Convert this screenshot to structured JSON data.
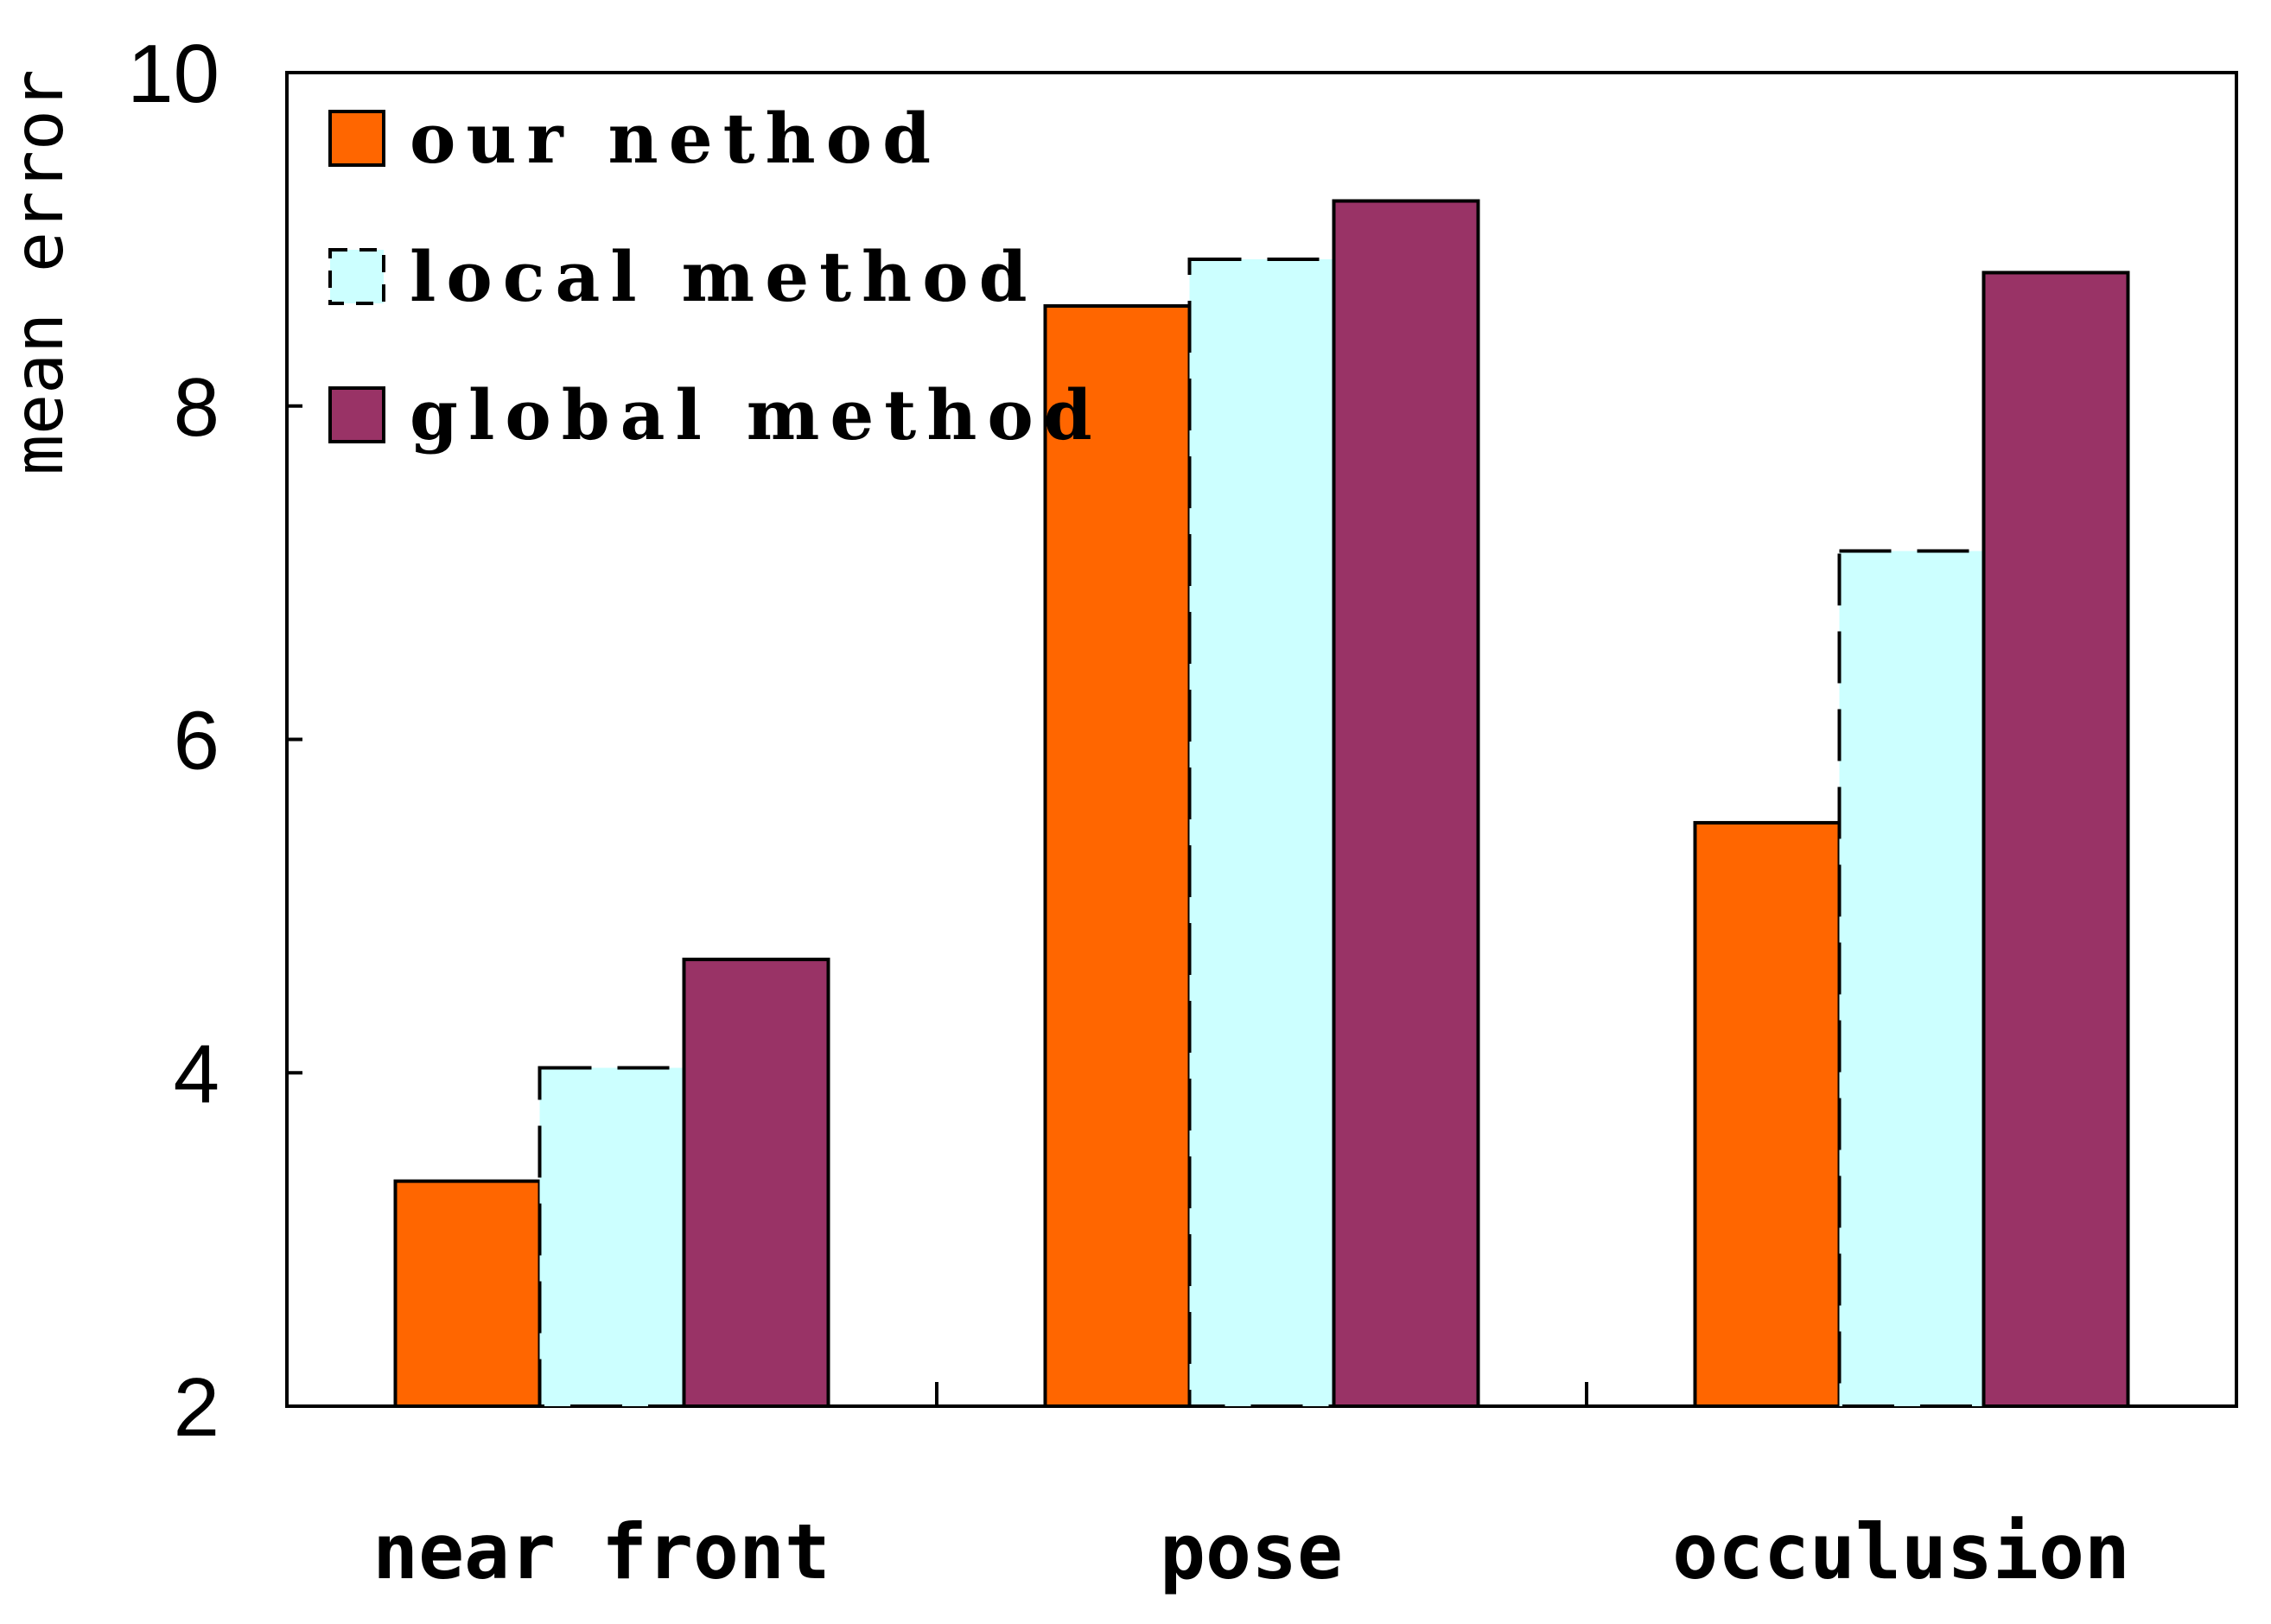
{
  "chart_data": {
    "type": "bar",
    "title": "",
    "xlabel": "",
    "ylabel": "mean error",
    "ylim": [
      2,
      10
    ],
    "yticks": [
      "2",
      "4",
      "6",
      "8",
      "10"
    ],
    "categories": [
      "near front",
      "pose",
      "occulusion"
    ],
    "series": [
      {
        "name": "our nethod",
        "values": [
          3.35,
          8.6,
          5.5
        ],
        "color": "#ff6600",
        "dashed": false
      },
      {
        "name": "local method",
        "values": [
          4.03,
          8.88,
          7.13
        ],
        "color": "#ccffff",
        "dashed": true
      },
      {
        "name": "global method",
        "values": [
          4.68,
          9.23,
          8.8
        ],
        "color": "#993366",
        "dashed": false
      }
    ],
    "legend_position": "top-left",
    "grid": false
  }
}
